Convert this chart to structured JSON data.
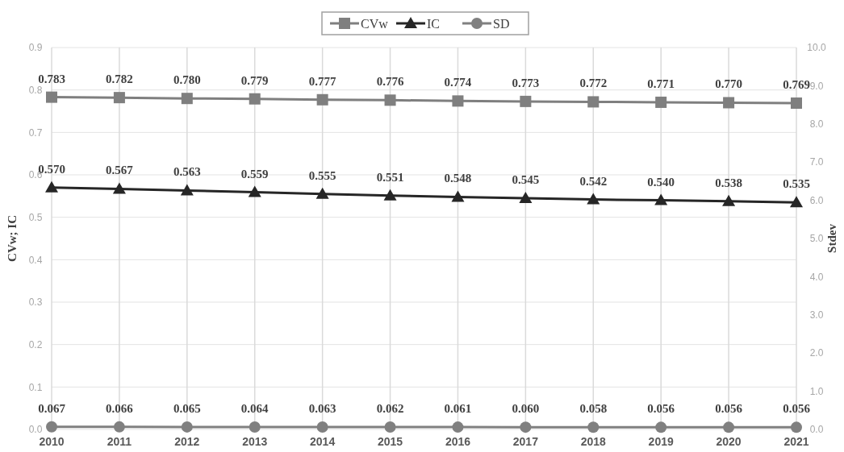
{
  "chart_data": {
    "type": "line",
    "ylabel": "CVw; IC",
    "y2label": "Stdev",
    "categories": [
      "2010",
      "2011",
      "2012",
      "2013",
      "2014",
      "2015",
      "2016",
      "2017",
      "2018",
      "2019",
      "2020",
      "2021"
    ],
    "series": [
      {
        "name": "CVw",
        "color": "#7f7f7f",
        "marker": "square",
        "values": [
          0.783,
          0.782,
          0.78,
          0.779,
          0.777,
          0.776,
          0.774,
          0.773,
          0.772,
          0.771,
          0.77,
          0.769
        ],
        "value_labels": [
          "0.783",
          "0.782",
          "0.780",
          "0.779",
          "0.777",
          "0.776",
          "0.774",
          "0.773",
          "0.772",
          "0.771",
          "0.770",
          "0.769"
        ]
      },
      {
        "name": "IC",
        "color": "#262626",
        "marker": "triangle",
        "values": [
          0.57,
          0.567,
          0.563,
          0.559,
          0.555,
          0.551,
          0.548,
          0.545,
          0.542,
          0.54,
          0.538,
          0.535
        ],
        "value_labels": [
          "0.570",
          "0.567",
          "0.563",
          "0.559",
          "0.555",
          "0.551",
          "0.548",
          "0.545",
          "0.542",
          "0.540",
          "0.538",
          "0.535"
        ]
      },
      {
        "name": "SD",
        "color": "#808080",
        "marker": "circle",
        "axis": "y2",
        "values": [
          0.067,
          0.066,
          0.065,
          0.064,
          0.063,
          0.062,
          0.061,
          0.06,
          0.058,
          0.056,
          0.056,
          0.056
        ],
        "value_labels": [
          "0.067",
          "0.066",
          "0.065",
          "0.064",
          "0.063",
          "0.062",
          "0.061",
          "0.060",
          "0.058",
          "0.056",
          "0.056",
          "0.056"
        ]
      }
    ],
    "ylim": [
      0,
      0.9
    ],
    "yticks": [
      {
        "value": 0,
        "label": "0.0"
      },
      0.1,
      0.2,
      0.3,
      0.4,
      0.5,
      0.6,
      0.7,
      0.8,
      0.9
    ],
    "y2lim": [
      0,
      10
    ],
    "y2ticks": [
      {
        "value": 0,
        "label": "0.0"
      },
      {
        "value": 1,
        "label": "1.0"
      },
      {
        "value": 2,
        "label": "2.0"
      },
      {
        "value": 3,
        "label": "3.0"
      },
      {
        "value": 4,
        "label": "4.0"
      },
      {
        "value": 5,
        "label": "5.0"
      },
      {
        "value": 6,
        "label": "6.0"
      },
      {
        "value": 7,
        "label": "7.0"
      },
      {
        "value": 8,
        "label": "8.0"
      },
      {
        "value": 9,
        "label": "9.0"
      },
      {
        "value": 10,
        "label": "10.0"
      }
    ],
    "grid": true,
    "legend": "top",
    "line_style": "solid"
  }
}
